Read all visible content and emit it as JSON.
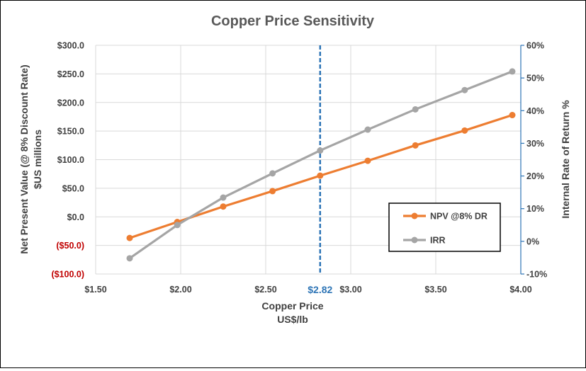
{
  "chart_data": {
    "type": "line",
    "title": "Copper Price Sensitivity",
    "xlabel_lines": [
      "Copper Price",
      "US$/lb"
    ],
    "ylabel_left_lines": [
      "Net Present Value (@ 8% Discount Rate)",
      "$US millions"
    ],
    "ylabel_right": "Internal Rate of Return %",
    "x_ticks": [
      1.5,
      2.0,
      2.5,
      3.0,
      3.5,
      4.0
    ],
    "x_tick_labels": [
      "$1.50",
      "$2.00",
      "$2.50",
      "$3.00",
      "$3.50",
      "$4.00"
    ],
    "xlim": [
      1.5,
      4.0
    ],
    "y_left_ticks": [
      -100,
      -50,
      0,
      50,
      100,
      150,
      200,
      250,
      300
    ],
    "y_left_tick_labels": [
      "($100.0)",
      "($50.0)",
      "$0.0",
      "$50.0",
      "$100.0",
      "$150.0",
      "$200.0",
      "$250.0",
      "$300.0"
    ],
    "ylim_left": [
      -100,
      300
    ],
    "y_right_ticks": [
      -10,
      0,
      10,
      20,
      30,
      40,
      50,
      60
    ],
    "y_right_tick_labels": [
      "-10%",
      "0%",
      "10%",
      "20%",
      "30%",
      "40%",
      "50%",
      "60%"
    ],
    "ylim_right": [
      -10,
      60
    ],
    "grid": true,
    "legend_position": "bottom-right",
    "x": [
      1.7,
      1.98,
      2.25,
      2.54,
      2.82,
      3.1,
      3.38,
      3.67,
      3.95
    ],
    "series": [
      {
        "name": "NPV @8% DR",
        "axis": "left",
        "color": "#ed7d31",
        "values": [
          -37,
          -9,
          18,
          45,
          72,
          98,
          125,
          151,
          178
        ]
      },
      {
        "name": "IRR",
        "axis": "right",
        "color": "#a5a5a5",
        "values": [
          -5.2,
          5.0,
          13.4,
          20.8,
          27.8,
          34.2,
          40.4,
          46.3,
          52.0
        ]
      }
    ],
    "reference_line": {
      "x": 2.82,
      "label": "$2.82",
      "color": "#2e75b6"
    }
  }
}
